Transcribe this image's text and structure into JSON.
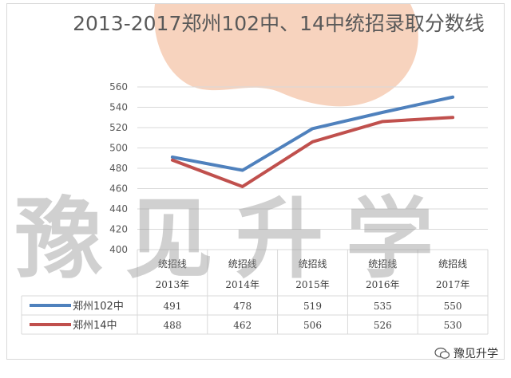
{
  "chart_data": {
    "type": "line",
    "title": "2013-2017郑州102中、14中统招录取分数线",
    "categories": [
      {
        "line1": "统招线",
        "line2": "2013年"
      },
      {
        "line1": "统招线",
        "line2": "2014年"
      },
      {
        "line1": "统招线",
        "line2": "2015年"
      },
      {
        "line1": "统招线",
        "line2": "2016年"
      },
      {
        "line1": "统招线",
        "line2": "2017年"
      }
    ],
    "series": [
      {
        "name": "郑州102中",
        "color": "#4f81bd",
        "values": [
          491,
          478,
          519,
          535,
          550
        ]
      },
      {
        "name": "郑州14中",
        "color": "#c0504d",
        "values": [
          488,
          462,
          506,
          526,
          530
        ]
      }
    ],
    "ylim": [
      400,
      560
    ],
    "yticks": [
      400,
      420,
      440,
      460,
      480,
      500,
      520,
      540,
      560
    ],
    "grid": true,
    "data_table": true
  },
  "watermark": "豫见升学",
  "credit": {
    "icon": "wechat-icon",
    "text": "豫见升学"
  }
}
